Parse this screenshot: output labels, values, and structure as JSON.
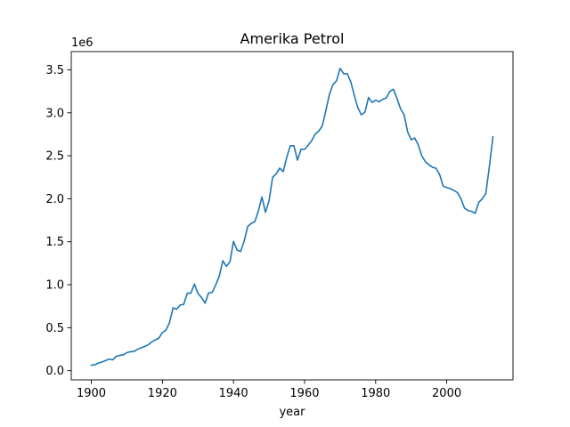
{
  "chart_data": {
    "type": "line",
    "title": "Amerika Petrol",
    "xlabel": "year",
    "ylabel": "",
    "y_offset_text": "1e6",
    "xlim": [
      1894.35,
      2018.65
    ],
    "ylim": [
      -107000,
      3712000
    ],
    "x_ticks": [
      1900,
      1920,
      1940,
      1960,
      1980,
      2000
    ],
    "y_ticks": [
      0.0,
      0.5,
      1.0,
      1.5,
      2.0,
      2.5,
      3.0,
      3.5
    ],
    "y_tick_scale": 1000000,
    "grid": false,
    "line_color": "#1f77b4",
    "series": [
      {
        "x": [
          1900,
          1901,
          1902,
          1903,
          1904,
          1905,
          1906,
          1907,
          1908,
          1909,
          1910,
          1911,
          1912,
          1913,
          1914,
          1915,
          1916,
          1917,
          1918,
          1919,
          1920,
          1921,
          1922,
          1923,
          1924,
          1925,
          1926,
          1927,
          1928,
          1929,
          1930,
          1931,
          1932,
          1933,
          1934,
          1935,
          1936,
          1937,
          1938,
          1939,
          1940,
          1941,
          1942,
          1943,
          1944,
          1945,
          1946,
          1947,
          1948,
          1949,
          1950,
          1951,
          1952,
          1953,
          1954,
          1955,
          1956,
          1957,
          1958,
          1959,
          1960,
          1961,
          1962,
          1963,
          1964,
          1965,
          1966,
          1967,
          1968,
          1969,
          1970,
          1971,
          1972,
          1973,
          1974,
          1975,
          1976,
          1977,
          1978,
          1979,
          1980,
          1981,
          1982,
          1983,
          1984,
          1985,
          1986,
          1987,
          1988,
          1989,
          1990,
          1991,
          1992,
          1993,
          1994,
          1995,
          1996,
          1997,
          1998,
          1999,
          2000,
          2001,
          2002,
          2003,
          2004,
          2005,
          2006,
          2007,
          2008,
          2009,
          2010,
          2011,
          2012,
          2013
        ],
        "y": [
          63000,
          69000,
          88000,
          100000,
          117000,
          135000,
          126000,
          166000,
          178000,
          183000,
          210000,
          220000,
          223000,
          248000,
          266000,
          281000,
          301000,
          335000,
          356000,
          378000,
          443000,
          472000,
          558000,
          732000,
          714000,
          764000,
          771000,
          901000,
          901000,
          1007000,
          898000,
          851000,
          785000,
          906000,
          908000,
          997000,
          1099000,
          1279000,
          1214000,
          1265000,
          1503000,
          1404000,
          1386000,
          1506000,
          1678000,
          1713000,
          1734000,
          1857000,
          2020000,
          1842000,
          1974000,
          2248000,
          2290000,
          2357000,
          2315000,
          2484000,
          2617000,
          2617000,
          2449000,
          2575000,
          2575000,
          2622000,
          2676000,
          2753000,
          2787000,
          2849000,
          3028000,
          3216000,
          3329000,
          3372000,
          3517000,
          3454000,
          3455000,
          3361000,
          3203000,
          3057000,
          2976000,
          3009000,
          3178000,
          3121000,
          3146000,
          3129000,
          3157000,
          3171000,
          3250000,
          3274000,
          3168000,
          3047000,
          2979000,
          2779000,
          2685000,
          2707000,
          2625000,
          2499000,
          2431000,
          2394000,
          2366000,
          2355000,
          2282000,
          2147000,
          2131000,
          2118000,
          2097000,
          2073000,
          2001000,
          1891000,
          1862000,
          1853000,
          1830000,
          1957000,
          1999000,
          2059000,
          2373000,
          2720000
        ]
      }
    ]
  }
}
